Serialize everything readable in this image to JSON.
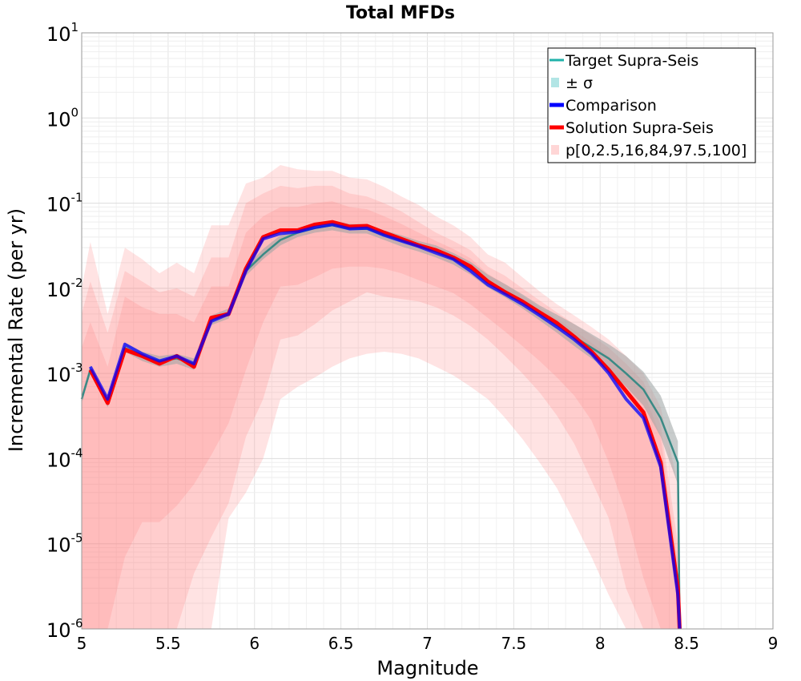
{
  "chart_data": {
    "type": "line",
    "title": "Total MFDs",
    "xlabel": "Magnitude",
    "ylabel": "Incremental Rate (per yr)",
    "xlim": [
      5,
      9
    ],
    "ylim": [
      1e-06,
      10
    ],
    "yscale": "log",
    "grid": true,
    "legend_position": "top-right",
    "xticks": [
      5,
      5.5,
      6,
      6.5,
      7,
      7.5,
      8,
      8.5,
      9
    ],
    "xtick_labels": [
      "5",
      "5.5",
      "6",
      "6.5",
      "7",
      "7.5",
      "8",
      "8.5",
      "9"
    ],
    "yticks": [
      {
        "value": 1e-06,
        "base": "10",
        "exp": "-6"
      },
      {
        "value": 1e-05,
        "base": "10",
        "exp": "-5"
      },
      {
        "value": 0.0001,
        "base": "10",
        "exp": "-4"
      },
      {
        "value": 0.001,
        "base": "10",
        "exp": "-3"
      },
      {
        "value": 0.01,
        "base": "10",
        "exp": "-2"
      },
      {
        "value": 0.1,
        "base": "10",
        "exp": "-1"
      },
      {
        "value": 1,
        "base": "10",
        "exp": "0"
      },
      {
        "value": 10,
        "base": "10",
        "exp": "1"
      }
    ],
    "x": [
      5.0,
      5.05,
      5.15,
      5.25,
      5.35,
      5.45,
      5.55,
      5.65,
      5.75,
      5.85,
      5.95,
      6.05,
      6.15,
      6.25,
      6.35,
      6.45,
      6.55,
      6.65,
      6.75,
      6.85,
      6.95,
      7.05,
      7.15,
      7.25,
      7.35,
      7.45,
      7.55,
      7.65,
      7.75,
      7.85,
      7.95,
      8.05,
      8.15,
      8.25,
      8.35,
      8.45,
      8.46
    ],
    "series": [
      {
        "name": "Target Supra-Seis",
        "color": "#20b2aa",
        "values": [
          0.0005,
          0.0011,
          0.00045,
          0.002,
          0.0016,
          0.0014,
          0.0015,
          0.0013,
          0.0042,
          0.005,
          0.016,
          0.025,
          0.037,
          0.045,
          0.051,
          0.055,
          0.05,
          0.05,
          0.042,
          0.036,
          0.031,
          0.027,
          0.022,
          0.017,
          0.012,
          0.0092,
          0.0069,
          0.005,
          0.0037,
          0.0027,
          0.002,
          0.0015,
          0.001,
          0.00065,
          0.0003,
          9e-05,
          1e-06
        ]
      },
      {
        "name": "Comparison",
        "color": "#0000ff",
        "values": [
          null,
          0.0012,
          0.0005,
          0.0022,
          0.0017,
          0.0014,
          0.0016,
          0.0013,
          0.0041,
          0.005,
          0.016,
          0.038,
          0.044,
          0.046,
          0.052,
          0.056,
          0.05,
          0.051,
          0.042,
          0.036,
          0.031,
          0.026,
          0.022,
          0.016,
          0.011,
          0.0085,
          0.0065,
          0.0048,
          0.0035,
          0.0025,
          0.0017,
          0.001,
          0.0005,
          0.0003,
          8e-05,
          2.5e-06,
          1e-06
        ]
      },
      {
        "name": "Solution Supra-Seis",
        "color": "#ff0000",
        "values": [
          null,
          0.0011,
          0.00045,
          0.0019,
          0.0016,
          0.0013,
          0.0016,
          0.0012,
          0.0045,
          0.005,
          0.017,
          0.04,
          0.048,
          0.048,
          0.056,
          0.06,
          0.053,
          0.054,
          0.045,
          0.038,
          0.032,
          0.028,
          0.023,
          0.018,
          0.012,
          0.009,
          0.007,
          0.0052,
          0.0039,
          0.0027,
          0.0018,
          0.0011,
          0.00062,
          0.00035,
          9e-05,
          3e-06,
          1e-06
        ]
      }
    ],
    "bands": [
      {
        "label": "± σ",
        "color": "#b2e5e5",
        "opacity": 0.8,
        "x": [
          5.0,
          5.05,
          5.15,
          5.25,
          5.35,
          5.45,
          5.55,
          5.65,
          5.75,
          5.85,
          5.95,
          6.05,
          6.15,
          6.25,
          6.35,
          6.45,
          6.55,
          6.65,
          6.75,
          6.85,
          6.95,
          7.05,
          7.15,
          7.25,
          7.35,
          7.45,
          7.55,
          7.65,
          7.75,
          7.85,
          7.95,
          8.05,
          8.15,
          8.25,
          8.35,
          8.45
        ],
        "lower": [
          0.00045,
          0.001,
          0.0004,
          0.0018,
          0.0014,
          0.0012,
          0.0013,
          0.0011,
          0.0037,
          0.0044,
          0.014,
          0.022,
          0.032,
          0.04,
          0.045,
          0.048,
          0.044,
          0.044,
          0.037,
          0.031,
          0.027,
          0.023,
          0.019,
          0.0145,
          0.0102,
          0.0078,
          0.0058,
          0.0042,
          0.003,
          0.0021,
          0.0015,
          0.0011,
          0.0007,
          0.00042,
          0.00018,
          5e-05
        ],
        "upper": [
          0.00056,
          0.00125,
          0.0005,
          0.0023,
          0.0018,
          0.0016,
          0.0017,
          0.0015,
          0.0048,
          0.0058,
          0.018,
          0.029,
          0.042,
          0.051,
          0.058,
          0.063,
          0.057,
          0.057,
          0.048,
          0.042,
          0.036,
          0.032,
          0.026,
          0.0205,
          0.0145,
          0.0112,
          0.0085,
          0.0063,
          0.0049,
          0.0038,
          0.0029,
          0.0022,
          0.0016,
          0.00105,
          0.00055,
          0.00016
        ]
      }
    ],
    "percentile_bands": {
      "label": "p[0,2.5,16,84,97.5,100]",
      "color": "#ff7f7f",
      "x": [
        5.0,
        5.05,
        5.15,
        5.25,
        5.35,
        5.45,
        5.55,
        5.65,
        5.75,
        5.85,
        5.95,
        6.05,
        6.15,
        6.25,
        6.35,
        6.45,
        6.55,
        6.65,
        6.75,
        6.85,
        6.95,
        7.05,
        7.15,
        7.25,
        7.35,
        7.45,
        7.55,
        7.65,
        7.75,
        7.85,
        7.95,
        8.05,
        8.15,
        8.25,
        8.35,
        8.45
      ],
      "outer": {
        "opacity": 0.22,
        "lower": [
          1e-06,
          1e-06,
          1e-06,
          1e-06,
          1e-06,
          1e-06,
          1e-06,
          1e-06,
          1e-06,
          2e-05,
          4e-05,
          0.0001,
          0.0005,
          0.0007,
          0.0009,
          0.0012,
          0.0015,
          0.0017,
          0.0018,
          0.0017,
          0.0015,
          0.0012,
          0.00095,
          0.0007,
          0.0005,
          0.0003,
          0.00017,
          9e-05,
          4.5e-05,
          1.8e-05,
          7e-06,
          2.5e-06,
          1e-06,
          1e-06,
          1e-06,
          1e-06
        ],
        "upper": [
          0.01,
          0.035,
          0.005,
          0.03,
          0.022,
          0.015,
          0.02,
          0.015,
          0.055,
          0.055,
          0.17,
          0.2,
          0.28,
          0.25,
          0.24,
          0.24,
          0.2,
          0.19,
          0.155,
          0.12,
          0.095,
          0.07,
          0.055,
          0.04,
          0.025,
          0.02,
          0.0135,
          0.0092,
          0.0065,
          0.0048,
          0.0035,
          0.0025,
          0.0016,
          0.001,
          0.0004,
          5e-05
        ]
      },
      "mid": {
        "opacity": 0.22,
        "lower": [
          1e-06,
          1e-06,
          1e-06,
          1e-06,
          1e-06,
          1e-06,
          1e-06,
          4.5e-06,
          1.2e-05,
          3e-05,
          0.00018,
          0.0005,
          0.0025,
          0.0028,
          0.0038,
          0.0055,
          0.007,
          0.009,
          0.008,
          0.0075,
          0.007,
          0.006,
          0.0048,
          0.0036,
          0.0025,
          0.0016,
          0.001,
          0.0006,
          0.00032,
          0.00015,
          5.5e-05,
          2e-05,
          3e-06,
          1e-06,
          1e-06,
          1e-06
        ],
        "upper": [
          0.005,
          0.012,
          0.003,
          0.016,
          0.012,
          0.009,
          0.01,
          0.008,
          0.023,
          0.023,
          0.1,
          0.13,
          0.16,
          0.15,
          0.16,
          0.16,
          0.13,
          0.12,
          0.1,
          0.08,
          0.06,
          0.045,
          0.036,
          0.028,
          0.018,
          0.014,
          0.01,
          0.0072,
          0.0052,
          0.0038,
          0.0028,
          0.002,
          0.0013,
          0.0008,
          0.00025,
          1e-05
        ]
      },
      "inner": {
        "opacity": 0.22,
        "lower": [
          1e-06,
          1e-06,
          1e-06,
          7e-06,
          1.8e-05,
          1.8e-05,
          2.8e-05,
          5e-05,
          0.00011,
          0.00026,
          0.0011,
          0.004,
          0.0105,
          0.011,
          0.0135,
          0.017,
          0.018,
          0.018,
          0.017,
          0.015,
          0.0125,
          0.0105,
          0.0088,
          0.0065,
          0.0045,
          0.0031,
          0.0021,
          0.0014,
          0.0009,
          0.00055,
          0.00028,
          9e-05,
          2.3e-05,
          4e-06,
          1e-06,
          1e-06
        ],
        "upper": [
          0.002,
          0.004,
          0.0012,
          0.008,
          0.006,
          0.005,
          0.005,
          0.004,
          0.0105,
          0.0105,
          0.045,
          0.07,
          0.09,
          0.09,
          0.1,
          0.105,
          0.09,
          0.085,
          0.07,
          0.057,
          0.045,
          0.036,
          0.029,
          0.0225,
          0.0148,
          0.0112,
          0.0082,
          0.006,
          0.0044,
          0.0032,
          0.0023,
          0.0016,
          0.001,
          0.00063,
          0.00018,
          6e-06
        ]
      }
    },
    "legend": [
      {
        "label": "Target Supra-Seis",
        "kind": "line",
        "color": "#20b2aa"
      },
      {
        "label": "± σ",
        "kind": "patch",
        "color": "#b2e5e5"
      },
      {
        "label": "Comparison",
        "kind": "line",
        "color": "#0000ff"
      },
      {
        "label": "Solution Supra-Seis",
        "kind": "line",
        "color": "#ff0000"
      },
      {
        "label": "p[0,2.5,16,84,97.5,100]",
        "kind": "patch",
        "color": "#ffd6d6"
      }
    ]
  }
}
